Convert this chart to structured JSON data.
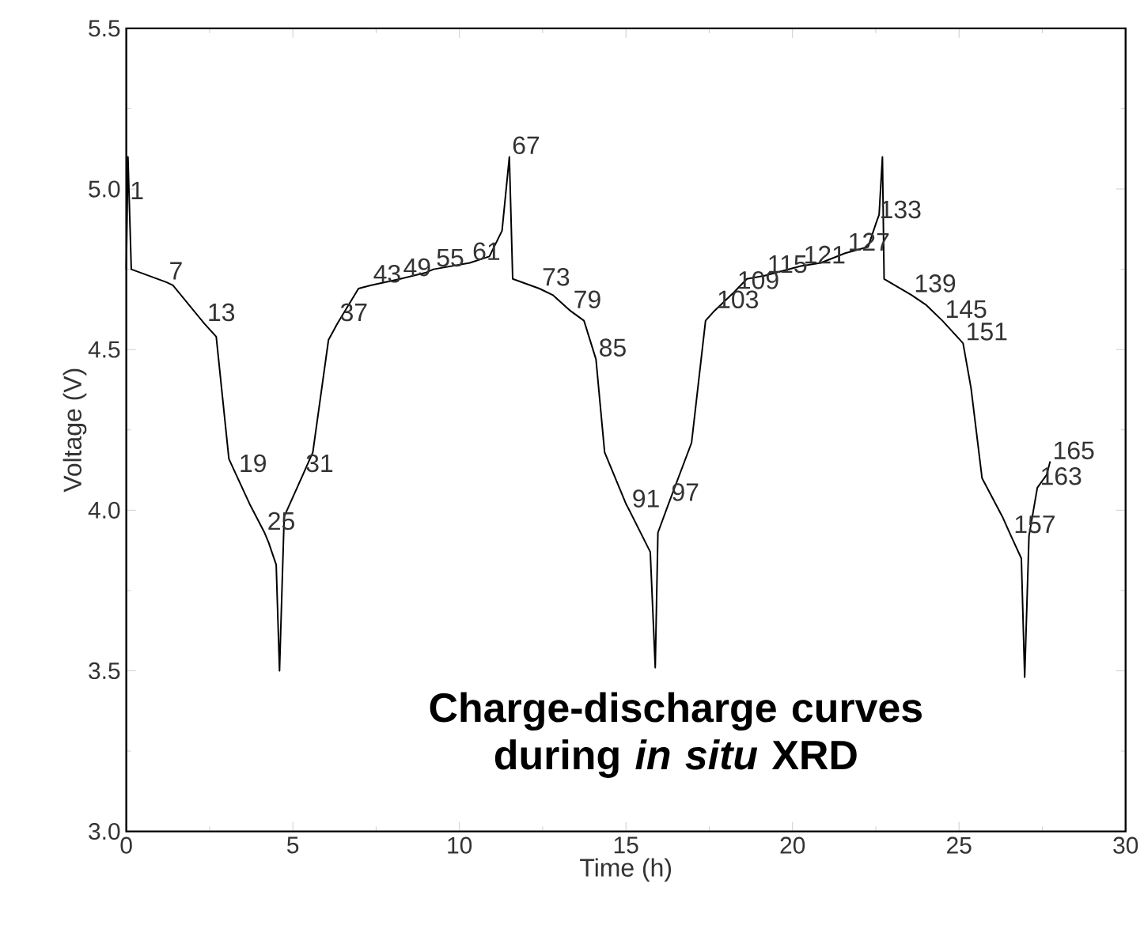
{
  "chart_data": {
    "type": "line",
    "xlabel": "Time (h)",
    "ylabel": "Voltage (V)",
    "xlim": [
      0,
      30
    ],
    "xticks": [
      0,
      5,
      10,
      15,
      20,
      25,
      30
    ],
    "ylim": [
      3.0,
      5.5
    ],
    "yticks": [
      {
        "value": 3.0,
        "label": "3.0"
      },
      {
        "value": 3.5,
        "label": "3.5"
      },
      {
        "value": 4.0,
        "label": "4.0"
      },
      {
        "value": 4.5,
        "label": "4.5"
      },
      {
        "value": 5.0,
        "label": "5.0"
      },
      {
        "value": 5.5,
        "label": "5.5"
      }
    ],
    "color": "#000000",
    "marker": "none",
    "line_style": "solid",
    "x": [
      0,
      0.03,
      0.05,
      0.15,
      1.2,
      1.4,
      2.35,
      2.7,
      3.08,
      3.3,
      3.7,
      4.15,
      4.27,
      4.5,
      4.6,
      4.74,
      5.3,
      5.6,
      6.07,
      6.33,
      6.97,
      7.33,
      8.23,
      9.0,
      9.22,
      10.31,
      10.9,
      11.28,
      11.5,
      11.6,
      12.4,
      12.8,
      13.34,
      13.74,
      14.1,
      14.36,
      15.0,
      15.1,
      15.73,
      15.88,
      15.96,
      16.28,
      16.97,
      17.39,
      17.65,
      18.26,
      18.63,
      19.16,
      20.25,
      20.85,
      21.58,
      22.27,
      22.53,
      22.6,
      22.7,
      22.75,
      23.57,
      24.0,
      24.5,
      25.12,
      25.36,
      25.69,
      26.3,
      26.56,
      26.87,
      26.97,
      27.1,
      27.35,
      27.63,
      27.73
    ],
    "values": [
      4.75,
      4.96,
      5.1,
      4.75,
      4.71,
      4.7,
      4.58,
      4.54,
      4.16,
      4.11,
      4.02,
      3.93,
      3.9,
      3.83,
      3.5,
      3.98,
      4.11,
      4.18,
      4.53,
      4.58,
      4.69,
      4.7,
      4.72,
      4.74,
      4.75,
      4.77,
      4.79,
      4.87,
      5.1,
      4.72,
      4.69,
      4.67,
      4.62,
      4.59,
      4.47,
      4.18,
      4.02,
      4.0,
      3.87,
      3.51,
      3.93,
      4.02,
      4.21,
      4.59,
      4.62,
      4.68,
      4.72,
      4.73,
      4.76,
      4.77,
      4.8,
      4.82,
      4.9,
      4.92,
      5.1,
      4.72,
      4.67,
      4.64,
      4.59,
      4.52,
      4.38,
      4.1,
      3.98,
      3.92,
      3.85,
      3.48,
      3.92,
      4.07,
      4.11,
      4.15
    ],
    "annotations": [
      {
        "text": "1",
        "x": 0.03,
        "y": 4.96
      },
      {
        "text": "7",
        "x": 1.2,
        "y": 4.71
      },
      {
        "text": "13",
        "x": 2.35,
        "y": 4.58
      },
      {
        "text": "19",
        "x": 3.3,
        "y": 4.11
      },
      {
        "text": "25",
        "x": 4.15,
        "y": 3.93
      },
      {
        "text": "31",
        "x": 5.3,
        "y": 4.11
      },
      {
        "text": "37",
        "x": 6.33,
        "y": 4.58
      },
      {
        "text": "43",
        "x": 7.33,
        "y": 4.7
      },
      {
        "text": "49",
        "x": 8.23,
        "y": 4.72
      },
      {
        "text": "55",
        "x": 9.22,
        "y": 4.75
      },
      {
        "text": "61",
        "x": 10.31,
        "y": 4.77
      },
      {
        "text": "67",
        "x": 11.5,
        "y": 5.1
      },
      {
        "text": "73",
        "x": 12.4,
        "y": 4.69
      },
      {
        "text": "79",
        "x": 13.34,
        "y": 4.62
      },
      {
        "text": "85",
        "x": 14.1,
        "y": 4.47
      },
      {
        "text": "91",
        "x": 15.1,
        "y": 4.0
      },
      {
        "text": "97",
        "x": 16.28,
        "y": 4.02
      },
      {
        "text": "103",
        "x": 17.65,
        "y": 4.62
      },
      {
        "text": "109",
        "x": 18.26,
        "y": 4.68
      },
      {
        "text": "115",
        "x": 19.16,
        "y": 4.73
      },
      {
        "text": "121",
        "x": 20.25,
        "y": 4.76
      },
      {
        "text": "127",
        "x": 21.58,
        "y": 4.8
      },
      {
        "text": "133",
        "x": 22.53,
        "y": 4.9
      },
      {
        "text": "139",
        "x": 23.57,
        "y": 4.67
      },
      {
        "text": "145",
        "x": 24.5,
        "y": 4.59
      },
      {
        "text": "151",
        "x": 25.12,
        "y": 4.52
      },
      {
        "text": "157",
        "x": 26.56,
        "y": 3.92
      },
      {
        "text": "163",
        "x": 27.35,
        "y": 4.07
      },
      {
        "text": "165",
        "x": 27.73,
        "y": 4.15
      },
      "Charge-discharge curves during *in situ* XRD"
    ]
  }
}
